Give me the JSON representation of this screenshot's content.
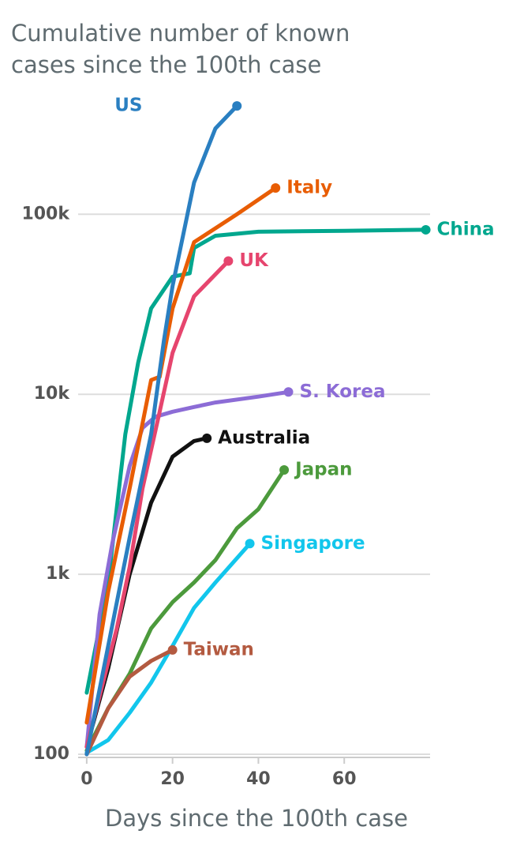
{
  "chart_data": {
    "type": "line",
    "title": "Cumulative number of known cases since the 100th case",
    "x_label": "Days since the 100th case",
    "log_y": true,
    "grid": true,
    "xlim": [
      -2,
      80
    ],
    "xticks": [
      0,
      20,
      40,
      60
    ],
    "ylim": [
      100,
      500000
    ],
    "yticks": [
      100,
      {
        "value": 1000,
        "label": "1k"
      },
      {
        "value": 10000,
        "label": "10k"
      },
      {
        "value": 100000,
        "label": "100k"
      }
    ],
    "series": [
      {
        "name": "China",
        "color": "#00a78e",
        "x": [
          0,
          5,
          9,
          12,
          15,
          20,
          24,
          25,
          30,
          40,
          60,
          79
        ],
        "values": [
          220,
          900,
          6000,
          15000,
          30000,
          45000,
          47000,
          65000,
          76000,
          80000,
          81000,
          82000
        ]
      },
      {
        "name": "Japan",
        "color": "#4c9a3c",
        "x": [
          0,
          5,
          10,
          15,
          20,
          25,
          30,
          35,
          40,
          46
        ],
        "values": [
          105,
          180,
          280,
          500,
          700,
          900,
          1200,
          1800,
          2300,
          3800
        ]
      },
      {
        "name": "Singapore",
        "color": "#12c6ec",
        "x": [
          0,
          5,
          10,
          15,
          20,
          25,
          30,
          38
        ],
        "values": [
          102,
          120,
          170,
          250,
          400,
          650,
          900,
          1480
        ]
      },
      {
        "name": "Taiwan",
        "color": "#b35a40",
        "x": [
          0,
          5,
          10,
          15,
          20
        ],
        "values": [
          100,
          180,
          270,
          330,
          380
        ]
      },
      {
        "name": "Australia",
        "color": "#111111",
        "x": [
          0,
          5,
          10,
          15,
          20,
          25,
          28
        ],
        "values": [
          110,
          300,
          1000,
          2500,
          4500,
          5500,
          5700
        ]
      },
      {
        "name": "S. Korea",
        "color": "#8c6cd6",
        "x": [
          0,
          3,
          6,
          10,
          13,
          16,
          20,
          25,
          30,
          40,
          47
        ],
        "values": [
          110,
          600,
          1500,
          4000,
          6500,
          7500,
          8000,
          8500,
          9000,
          9700,
          10300
        ]
      },
      {
        "name": "UK",
        "color": "#e6456e",
        "x": [
          0,
          7,
          10,
          13,
          17,
          20,
          25,
          33
        ],
        "values": [
          110,
          500,
          1100,
          3000,
          8000,
          17000,
          35000,
          55000
        ]
      },
      {
        "name": "Italy",
        "color": "#e85d04",
        "x": [
          0,
          5,
          10,
          15,
          17,
          20,
          25,
          35,
          44
        ],
        "values": [
          150,
          800,
          3000,
          12000,
          12500,
          30000,
          70000,
          100000,
          140000
        ]
      },
      {
        "name": "US",
        "color": "#2a7fc1",
        "x": [
          0,
          5,
          10,
          15,
          18,
          20,
          25,
          30,
          35
        ],
        "values": [
          100,
          400,
          1600,
          6000,
          20000,
          40000,
          150000,
          300000,
          400000
        ]
      }
    ]
  }
}
